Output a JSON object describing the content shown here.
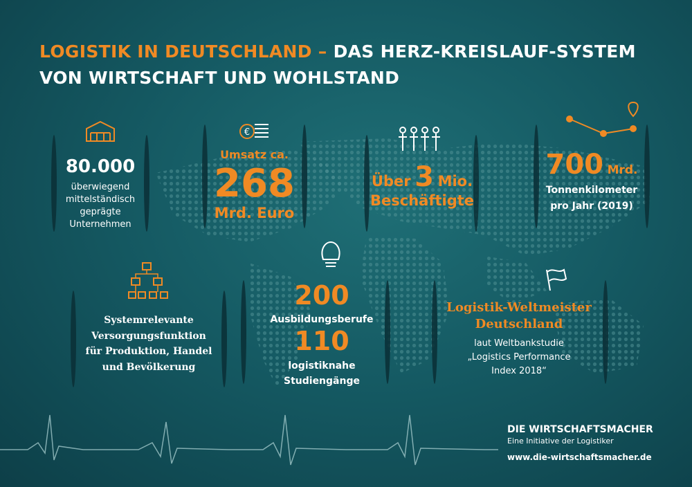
{
  "header": {
    "title_highlight": "LOGISTIK IN DEUTSCHLAND –",
    "title_rest": "DAS HERZ-KREISLAUF-SYSTEM",
    "title_line2": "VON WIRTSCHAFT UND WOHLSTAND"
  },
  "facts": [
    {
      "number": "80.000",
      "text": [
        "überwiegend",
        "mittelständisch",
        "geprägte",
        "Unternehmen"
      ]
    },
    {
      "prefix": "Umsatz ca.",
      "number": "268",
      "suffix": "Mrd. Euro"
    },
    {
      "prefix": "Über",
      "number": "3",
      "unit": "Mio.",
      "suffix": "Beschäftigte"
    },
    {
      "number": "700",
      "unit": "Mrd.",
      "text": [
        "Tonnenkilometer",
        "pro Jahr (2019)"
      ]
    },
    {
      "text": [
        "Systemrelevante",
        "Versorgungsfunktion",
        "für Produktion, Handel",
        "und Bevölkerung"
      ]
    },
    {
      "number": "200",
      "label": "Ausbildungsberufe",
      "number2": "110",
      "text": [
        "logistiknahe",
        "Studiengänge"
      ]
    },
    {
      "heading": [
        "Logistik-Weltmeister",
        "Deutschland"
      ],
      "text": [
        "laut Weltbankstudie",
        "„Logistics Performance",
        "Index 2018“"
      ]
    }
  ],
  "footer": {
    "brand": "DIE WIRTSCHAFTSMACHER",
    "tagline": "Eine Initiative der Logistiker",
    "url": "www.die-wirtschaftsmacher.de"
  }
}
